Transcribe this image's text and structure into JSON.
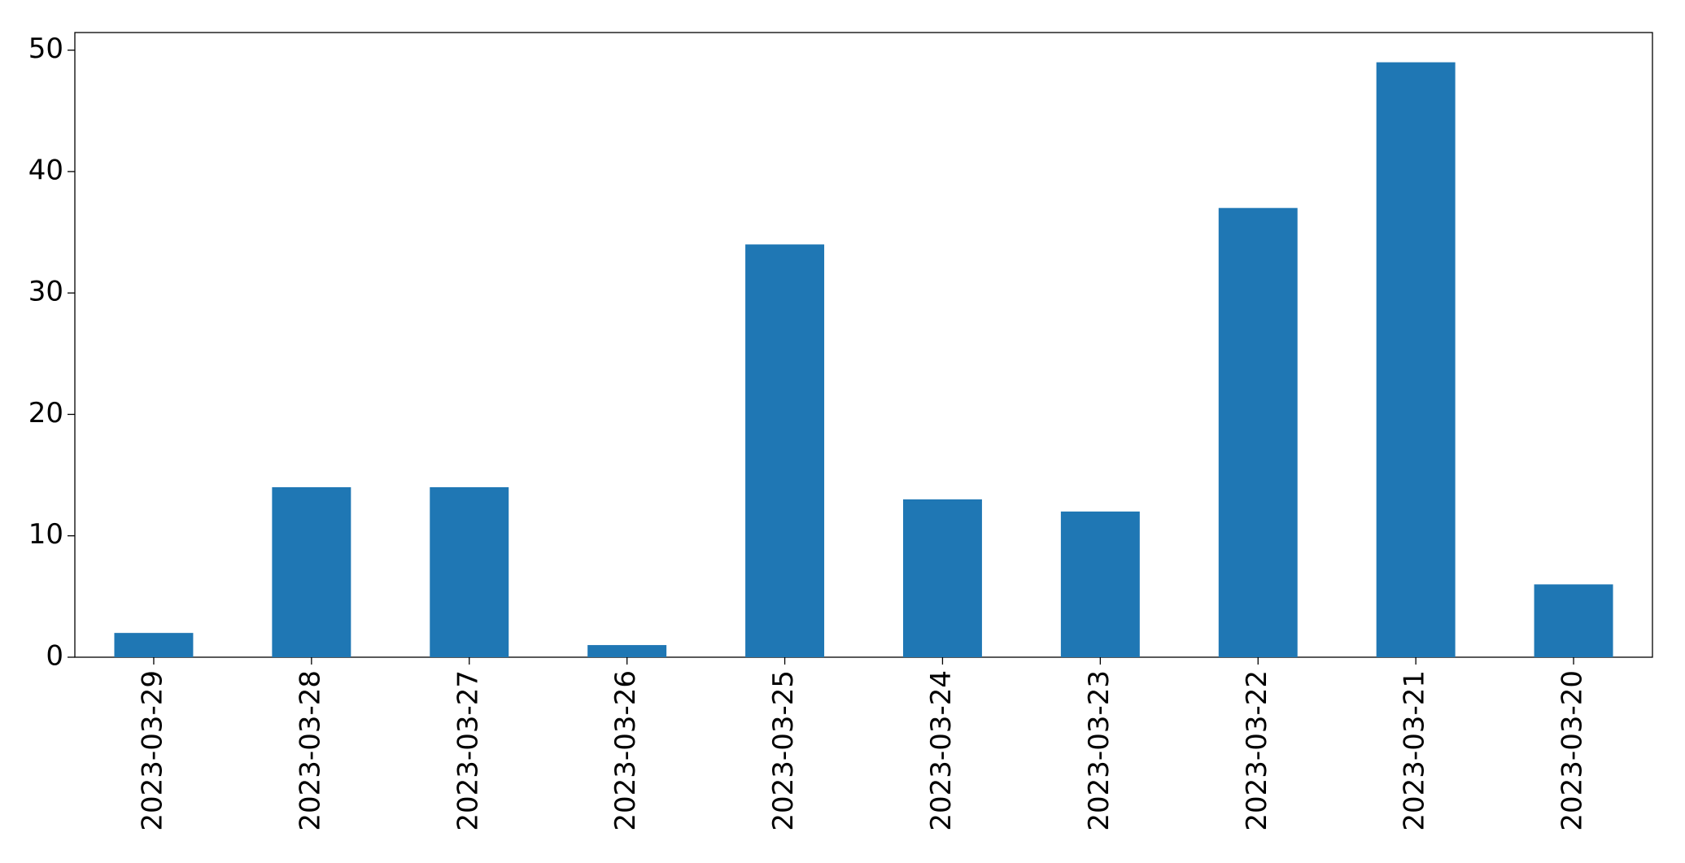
{
  "chart_data": {
    "type": "bar",
    "categories": [
      "2023-03-29",
      "2023-03-28",
      "2023-03-27",
      "2023-03-26",
      "2023-03-25",
      "2023-03-24",
      "2023-03-23",
      "2023-03-22",
      "2023-03-21",
      "2023-03-20"
    ],
    "values": [
      2,
      14,
      14,
      1,
      34,
      13,
      12,
      37,
      49,
      6
    ],
    "color": "#1f77b4",
    "ylim": [
      0,
      51.45
    ],
    "yticks": [
      0,
      10,
      20,
      30,
      40,
      50
    ],
    "grid": false
  }
}
